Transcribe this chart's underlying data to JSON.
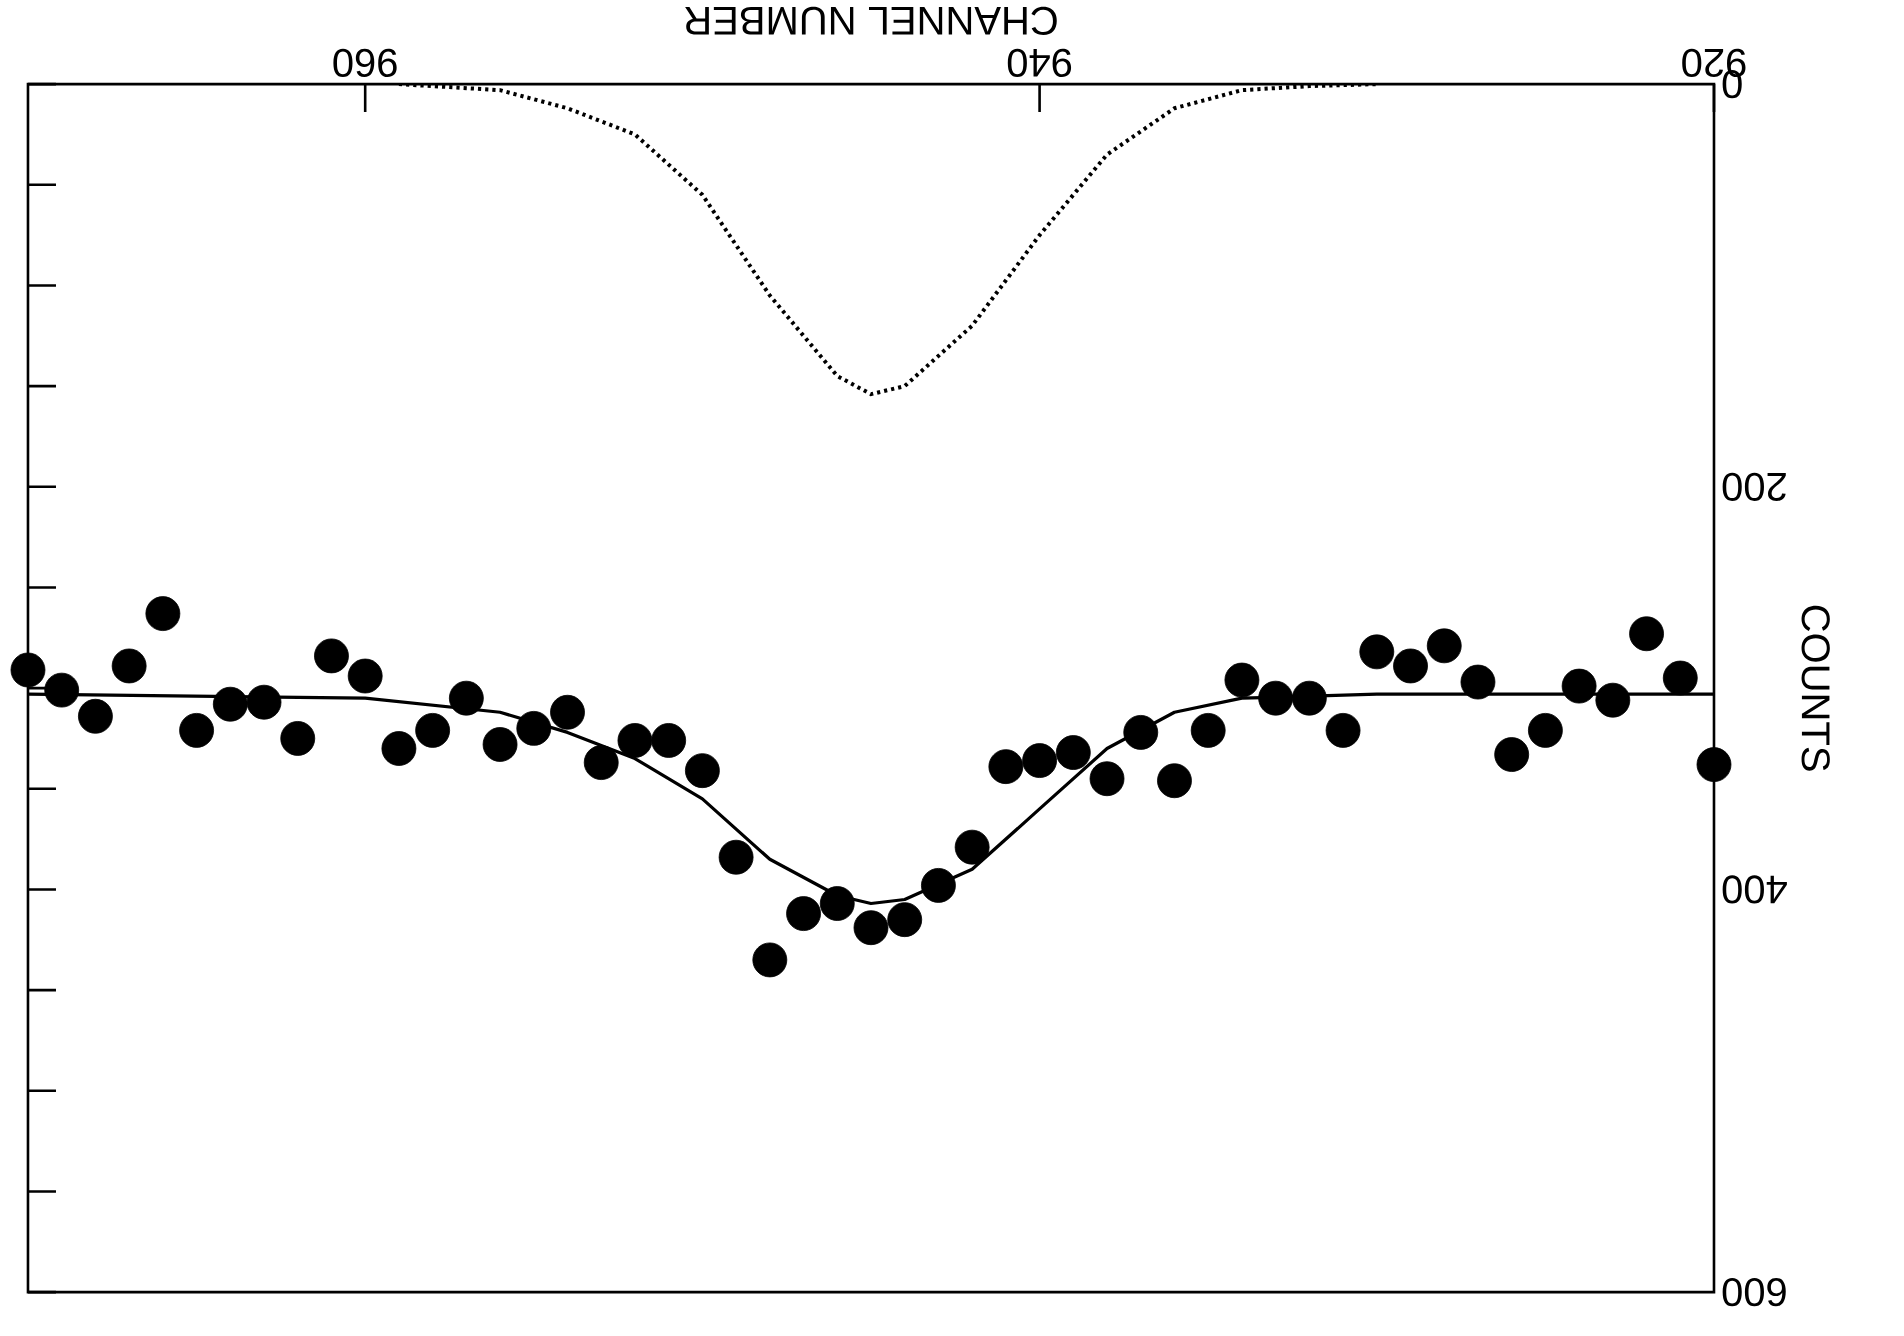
{
  "chart_data": {
    "type": "scatter",
    "xlabel": "CHANNEL NUMBER",
    "ylabel": "COUNTS",
    "xlim": [
      970,
      920
    ],
    "ylim": [
      600,
      0
    ],
    "xticks": [
      920,
      940,
      960
    ],
    "yticks": [
      0,
      {
        "value": 50,
        "label": null
      },
      {
        "value": 100,
        "label": null
      },
      {
        "value": 150,
        "label": null
      },
      200,
      {
        "value": 250,
        "label": null
      },
      {
        "value": 300,
        "label": null
      },
      {
        "value": 350,
        "label": null
      },
      400,
      {
        "value": 450,
        "label": null
      },
      {
        "value": 500,
        "label": null
      },
      {
        "value": 550,
        "label": null
      },
      600
    ],
    "series": [
      {
        "color": "#000000",
        "marker": "circle",
        "x": [
          970,
          969,
          968,
          967,
          966,
          965,
          964,
          963,
          962,
          961,
          960,
          959,
          958,
          957,
          956,
          955,
          954,
          953,
          952,
          951,
          950,
          949,
          948,
          947,
          946,
          945,
          944,
          943,
          942,
          941,
          940,
          939,
          938,
          937,
          936,
          935,
          934,
          933,
          932,
          931,
          930,
          929,
          928,
          927,
          926,
          925,
          924,
          923,
          922,
          921,
          920
        ],
        "values": [
          291,
          301,
          314,
          289,
          263,
          321,
          308,
          307,
          325,
          284,
          294,
          330,
          321,
          305,
          328,
          320,
          312,
          337,
          326,
          326,
          341,
          384,
          435,
          412,
          407,
          419,
          415,
          398,
          379,
          339,
          336,
          332,
          345,
          322,
          346,
          321,
          296,
          305,
          305,
          321,
          282,
          289,
          279,
          297,
          333,
          321,
          299,
          306,
          273,
          295,
          338
        ]
      },
      {
        "type": "line",
        "color": "#000000",
        "marker": "none",
        "line_style": "solid",
        "x": [
          970,
          960,
          956,
          954,
          952,
          950,
          948,
          946,
          945,
          944,
          942,
          940,
          938,
          936,
          934,
          930,
          920
        ],
        "values": [
          303,
          305,
          312,
          322,
          335,
          355,
          385,
          403,
          407,
          405,
          390,
          360,
          330,
          312,
          305,
          303,
          303
        ]
      },
      {
        "type": "line",
        "color": "#000000",
        "marker": "none",
        "line_style": "dotted",
        "x": [
          959,
          956,
          954,
          952,
          950,
          948,
          946,
          945,
          944,
          942,
          940,
          938,
          936,
          934,
          932,
          930
        ],
        "values": [
          0,
          3,
          12,
          25,
          55,
          105,
          145,
          154,
          150,
          120,
          75,
          35,
          12,
          3,
          1,
          0
        ]
      }
    ]
  }
}
